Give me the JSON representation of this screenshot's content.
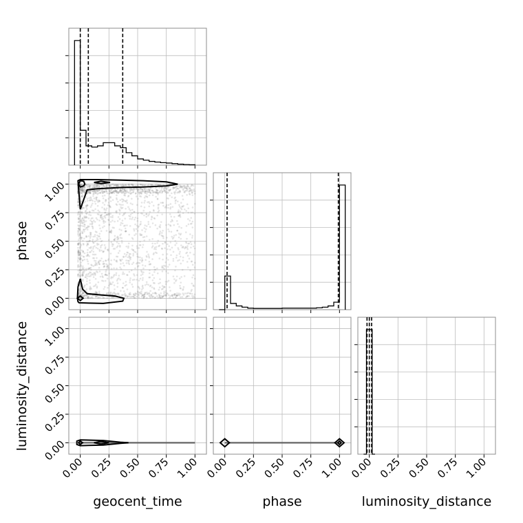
{
  "chart_data": {
    "type": "corner",
    "parameters": [
      "geocent_time",
      "phase",
      "luminosity_distance"
    ],
    "range": [
      -0.1,
      1.1
    ],
    "ticks": [
      0.0,
      0.25,
      0.5,
      0.75,
      1.0
    ],
    "tick_labels": [
      "0.00",
      "0.25",
      "0.50",
      "0.75",
      "1.00"
    ],
    "grid": true,
    "histograms": [
      {
        "parameter": "geocent_time",
        "bin_edges": [
          -0.05,
          0.0,
          0.05,
          0.1,
          0.15,
          0.2,
          0.25,
          0.3,
          0.35,
          0.4,
          0.45,
          0.5,
          0.55,
          0.6,
          0.65,
          0.7,
          0.75,
          0.8,
          0.85,
          0.9,
          0.95,
          1.0
        ],
        "counts": [
          1.0,
          0.28,
          0.155,
          0.145,
          0.155,
          0.18,
          0.18,
          0.155,
          0.14,
          0.1,
          0.075,
          0.05,
          0.04,
          0.03,
          0.025,
          0.02,
          0.017,
          0.012,
          0.008,
          0.005,
          0.003
        ],
        "quantiles": [
          0.0,
          0.07,
          0.37
        ]
      },
      {
        "parameter": "phase",
        "bin_edges": [
          -0.05,
          0.0,
          0.05,
          0.1,
          0.15,
          0.2,
          0.25,
          0.3,
          0.35,
          0.4,
          0.45,
          0.5,
          0.55,
          0.6,
          0.65,
          0.7,
          0.75,
          0.8,
          0.85,
          0.9,
          0.95,
          1.0,
          1.05
        ],
        "counts": [
          0.0,
          0.27,
          0.05,
          0.03,
          0.02,
          0.012,
          0.01,
          0.01,
          0.01,
          0.01,
          0.01,
          0.012,
          0.012,
          0.012,
          0.012,
          0.012,
          0.012,
          0.015,
          0.02,
          0.03,
          0.06,
          1.0
        ],
        "quantiles": [
          0.02,
          0.99
        ]
      },
      {
        "parameter": "luminosity_distance",
        "bin_edges": [
          -0.05,
          -0.025,
          0.0,
          0.025,
          0.05
        ],
        "counts": [
          0.0,
          1.0,
          1.0,
          0.0
        ],
        "quantiles": [
          -0.02,
          0.0,
          0.02
        ]
      }
    ],
    "pairs": [
      {
        "x": "geocent_time",
        "y": "phase",
        "contours": [
          [
            [
              0.0,
              1.04
            ],
            [
              0.15,
              1.04
            ],
            [
              0.35,
              1.035
            ],
            [
              0.55,
              1.03
            ],
            [
              0.75,
              1.02
            ],
            [
              0.85,
              1.0
            ],
            [
              0.75,
              0.985
            ],
            [
              0.55,
              0.975
            ],
            [
              0.35,
              0.97
            ],
            [
              0.15,
              0.96
            ],
            [
              0.06,
              0.95
            ],
            [
              0.0,
              0.78
            ],
            [
              -0.01,
              0.9
            ],
            [
              -0.02,
              1.03
            ]
          ],
          [
            [
              0.12,
              1.015
            ],
            [
              0.18,
              1.025
            ],
            [
              0.26,
              1.015
            ],
            [
              0.18,
              1.005
            ],
            [
              0.12,
              1.015
            ]
          ],
          [
            [
              -0.015,
              1.0
            ],
            [
              0.0,
              1.03
            ],
            [
              0.03,
              1.025
            ],
            [
              0.04,
              1.0
            ],
            [
              0.03,
              0.985
            ],
            [
              0.0,
              0.975
            ],
            [
              -0.015,
              1.0
            ]
          ],
          [
            [
              -0.01,
              -0.04
            ],
            [
              0.2,
              -0.045
            ],
            [
              0.37,
              -0.025
            ],
            [
              0.38,
              0.0
            ],
            [
              0.3,
              0.02
            ],
            [
              0.17,
              0.03
            ],
            [
              0.06,
              0.04
            ],
            [
              0.02,
              0.08
            ],
            [
              0.0,
              0.17
            ],
            [
              -0.02,
              0.1
            ],
            [
              -0.025,
              0.0
            ],
            [
              -0.02,
              -0.03
            ],
            [
              -0.01,
              -0.04
            ]
          ],
          [
            [
              -0.025,
              0.0
            ],
            [
              0.0,
              0.02
            ],
            [
              0.025,
              0.0
            ],
            [
              0.0,
              -0.02
            ],
            [
              -0.025,
              0.0
            ]
          ]
        ],
        "samples": {
          "n": 2200,
          "seed": 7
        }
      },
      {
        "x": "geocent_time",
        "y": "luminosity_distance",
        "contours": [
          [
            [
              -0.03,
              -0.015
            ],
            [
              0.0,
              -0.025
            ],
            [
              0.2,
              -0.02
            ],
            [
              0.35,
              -0.005
            ],
            [
              0.42,
              0.0
            ],
            [
              0.35,
              0.005
            ],
            [
              0.2,
              0.02
            ],
            [
              0.0,
              0.025
            ],
            [
              -0.03,
              0.015
            ],
            [
              -0.03,
              -0.015
            ]
          ],
          [
            [
              0.12,
              0.0
            ],
            [
              0.18,
              0.012
            ],
            [
              0.25,
              0.0
            ],
            [
              0.18,
              -0.012
            ],
            [
              0.12,
              0.0
            ]
          ],
          [
            [
              -0.015,
              0.0
            ],
            [
              0.0,
              0.015
            ],
            [
              0.02,
              0.0
            ],
            [
              0.0,
              -0.015
            ],
            [
              -0.015,
              0.0
            ]
          ]
        ],
        "line": [
          [
            -0.02,
            0.0
          ],
          [
            1.0,
            0.0
          ]
        ]
      },
      {
        "x": "phase",
        "y": "luminosity_distance",
        "contours": [
          [
            [
              -0.04,
              0.0
            ],
            [
              0.0,
              0.035
            ],
            [
              0.04,
              0.0
            ],
            [
              0.0,
              -0.035
            ],
            [
              -0.04,
              0.0
            ]
          ],
          [
            [
              0.96,
              0.0
            ],
            [
              1.0,
              0.035
            ],
            [
              1.04,
              0.0
            ],
            [
              1.0,
              -0.035
            ],
            [
              0.96,
              0.0
            ]
          ],
          [
            [
              0.985,
              0.0
            ],
            [
              1.0,
              0.015
            ],
            [
              1.015,
              0.0
            ],
            [
              1.0,
              -0.015
            ],
            [
              0.985,
              0.0
            ]
          ]
        ],
        "line": [
          [
            0.0,
            0.0
          ],
          [
            1.0,
            0.0
          ]
        ]
      }
    ]
  }
}
